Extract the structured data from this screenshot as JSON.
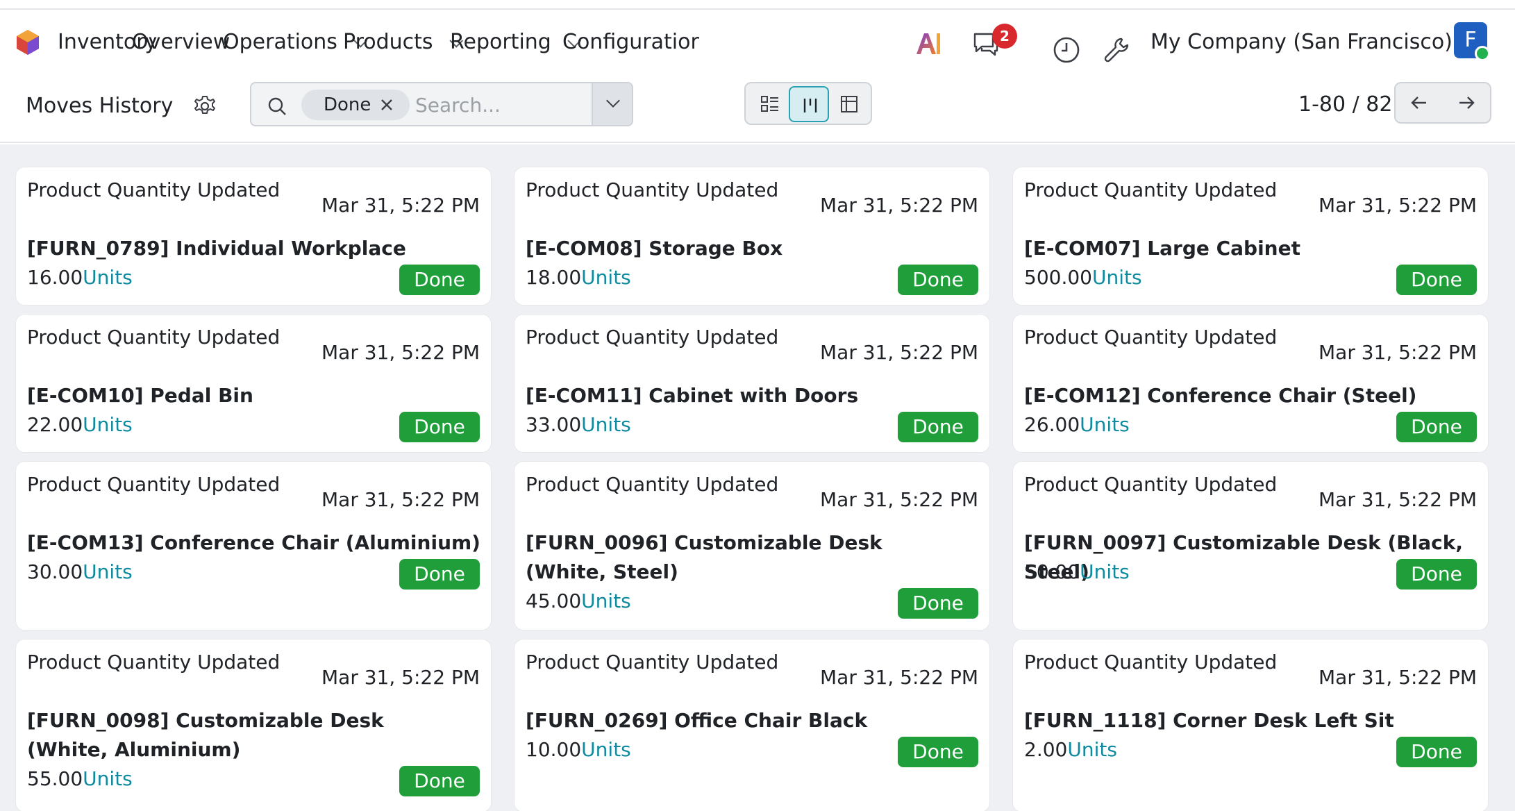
{
  "navbar": {
    "app_name": "Inventory",
    "menu": [
      {
        "label": "Overview",
        "has_dropdown": false
      },
      {
        "label": "Operations",
        "has_dropdown": true
      },
      {
        "label": "Products",
        "has_dropdown": true
      },
      {
        "label": "Reporting",
        "has_dropdown": true
      },
      {
        "label": "Configuratior",
        "has_dropdown": false
      }
    ],
    "message_count": "2",
    "company": "My Company (San Francisco)",
    "avatar_initial": "F",
    "icons": [
      "app-logo-icon",
      "ai-icon",
      "chat-icon",
      "clock-icon",
      "wrench-icon"
    ]
  },
  "control": {
    "breadcrumb": "Moves History",
    "facet_label": "Done",
    "search_placeholder": "Search...",
    "pager_value": "1-80 / 82"
  },
  "colors": {
    "brand": "#1f5fbf",
    "accent": "#2aa1b3",
    "status_done": "#1f9e3a",
    "uom_link": "#0f8a9e",
    "badge": "#d9272e"
  },
  "cards": [
    {
      "title": "Product Quantity Updated",
      "date": "Mar 31, 5:22 PM",
      "product": "[FURN_0789] Individual Workplace",
      "qty": "16.00",
      "uom": "Units",
      "status": "Done"
    },
    {
      "title": "Product Quantity Updated",
      "date": "Mar 31, 5:22 PM",
      "product": "[E-COM08] Storage Box",
      "qty": "18.00",
      "uom": "Units",
      "status": "Done"
    },
    {
      "title": "Product Quantity Updated",
      "date": "Mar 31, 5:22 PM",
      "product": "[E-COM07] Large Cabinet",
      "qty": "500.00",
      "uom": "Units",
      "status": "Done"
    },
    {
      "title": "Product Quantity Updated",
      "date": "Mar 31, 5:22 PM",
      "product": "[E-COM10] Pedal Bin",
      "qty": "22.00",
      "uom": "Units",
      "status": "Done"
    },
    {
      "title": "Product Quantity Updated",
      "date": "Mar 31, 5:22 PM",
      "product": "[E-COM11] Cabinet with Doors",
      "qty": "33.00",
      "uom": "Units",
      "status": "Done"
    },
    {
      "title": "Product Quantity Updated",
      "date": "Mar 31, 5:22 PM",
      "product": "[E-COM12] Conference Chair (Steel)",
      "qty": "26.00",
      "uom": "Units",
      "status": "Done"
    },
    {
      "title": "Product Quantity Updated",
      "date": "Mar 31, 5:22 PM",
      "product": "[E-COM13] Conference Chair (Aluminium)",
      "qty": "30.00",
      "uom": "Units",
      "status": "Done"
    },
    {
      "title": "Product Quantity Updated",
      "date": "Mar 31, 5:22 PM",
      "product": "[FURN_0096] Customizable Desk (White, Steel)",
      "qty": "45.00",
      "uom": "Units",
      "status": "Done"
    },
    {
      "title": "Product Quantity Updated",
      "date": "Mar 31, 5:22 PM",
      "product": "[FURN_0097] Customizable Desk (Black, Steel)",
      "qty": "50.00",
      "uom": "Units",
      "status": "Done"
    },
    {
      "title": "Product Quantity Updated",
      "date": "Mar 31, 5:22 PM",
      "product": "[FURN_0098] Customizable Desk (White, Aluminium)",
      "qty": "55.00",
      "uom": "Units",
      "status": "Done"
    },
    {
      "title": "Product Quantity Updated",
      "date": "Mar 31, 5:22 PM",
      "product": "[FURN_0269] Office Chair Black",
      "qty": "10.00",
      "uom": "Units",
      "status": "Done"
    },
    {
      "title": "Product Quantity Updated",
      "date": "Mar 31, 5:22 PM",
      "product": "[FURN_1118] Corner Desk Left Sit",
      "qty": "2.00",
      "uom": "Units",
      "status": "Done"
    }
  ]
}
